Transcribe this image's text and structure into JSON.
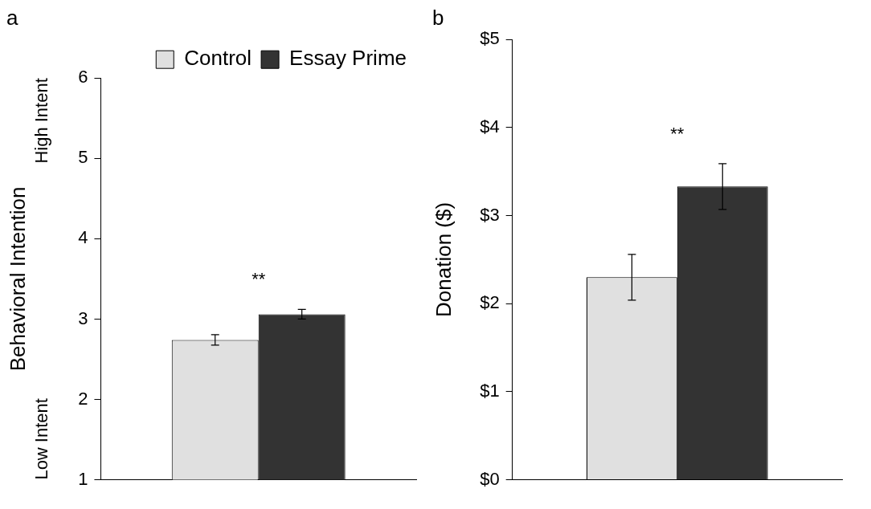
{
  "chart_data": [
    {
      "type": "bar",
      "title": "a",
      "ylabel": "Behavioral Intention",
      "categories": [
        null
      ],
      "series": [
        {
          "name": "Control",
          "color": "#e0e0e0",
          "values": [
            2.74
          ],
          "errors": [
            0.065
          ]
        },
        {
          "name": "Essay Prime",
          "color": "#333333",
          "values": [
            3.06
          ],
          "errors": [
            0.06
          ]
        }
      ],
      "ylim": [
        1,
        6
      ],
      "yticks": [
        1,
        2,
        3,
        4,
        5,
        6
      ],
      "legend": "top right",
      "annotations": [
        "**",
        "High Intent",
        "Low Intent"
      ]
    },
    {
      "type": "bar",
      "title": "b",
      "ylabel": "Donation ($)",
      "categories": [
        null
      ],
      "series": [
        {
          "color": "#e0e0e0",
          "values": [
            2.3
          ],
          "errors": [
            0.26
          ]
        },
        {
          "color": "#333333",
          "values": [
            3.33
          ],
          "errors": [
            0.26
          ]
        }
      ],
      "ylim": [
        0,
        5
      ],
      "yticks": [
        {
          "value": 0,
          "label": "$0"
        },
        {
          "value": 1,
          "label": "$1"
        },
        {
          "value": 2,
          "label": "$2"
        },
        {
          "value": 3,
          "label": "$3"
        },
        {
          "value": 4,
          "label": "$4"
        },
        {
          "value": 5,
          "label": "$5"
        }
      ],
      "annotations": [
        "**"
      ]
    }
  ]
}
